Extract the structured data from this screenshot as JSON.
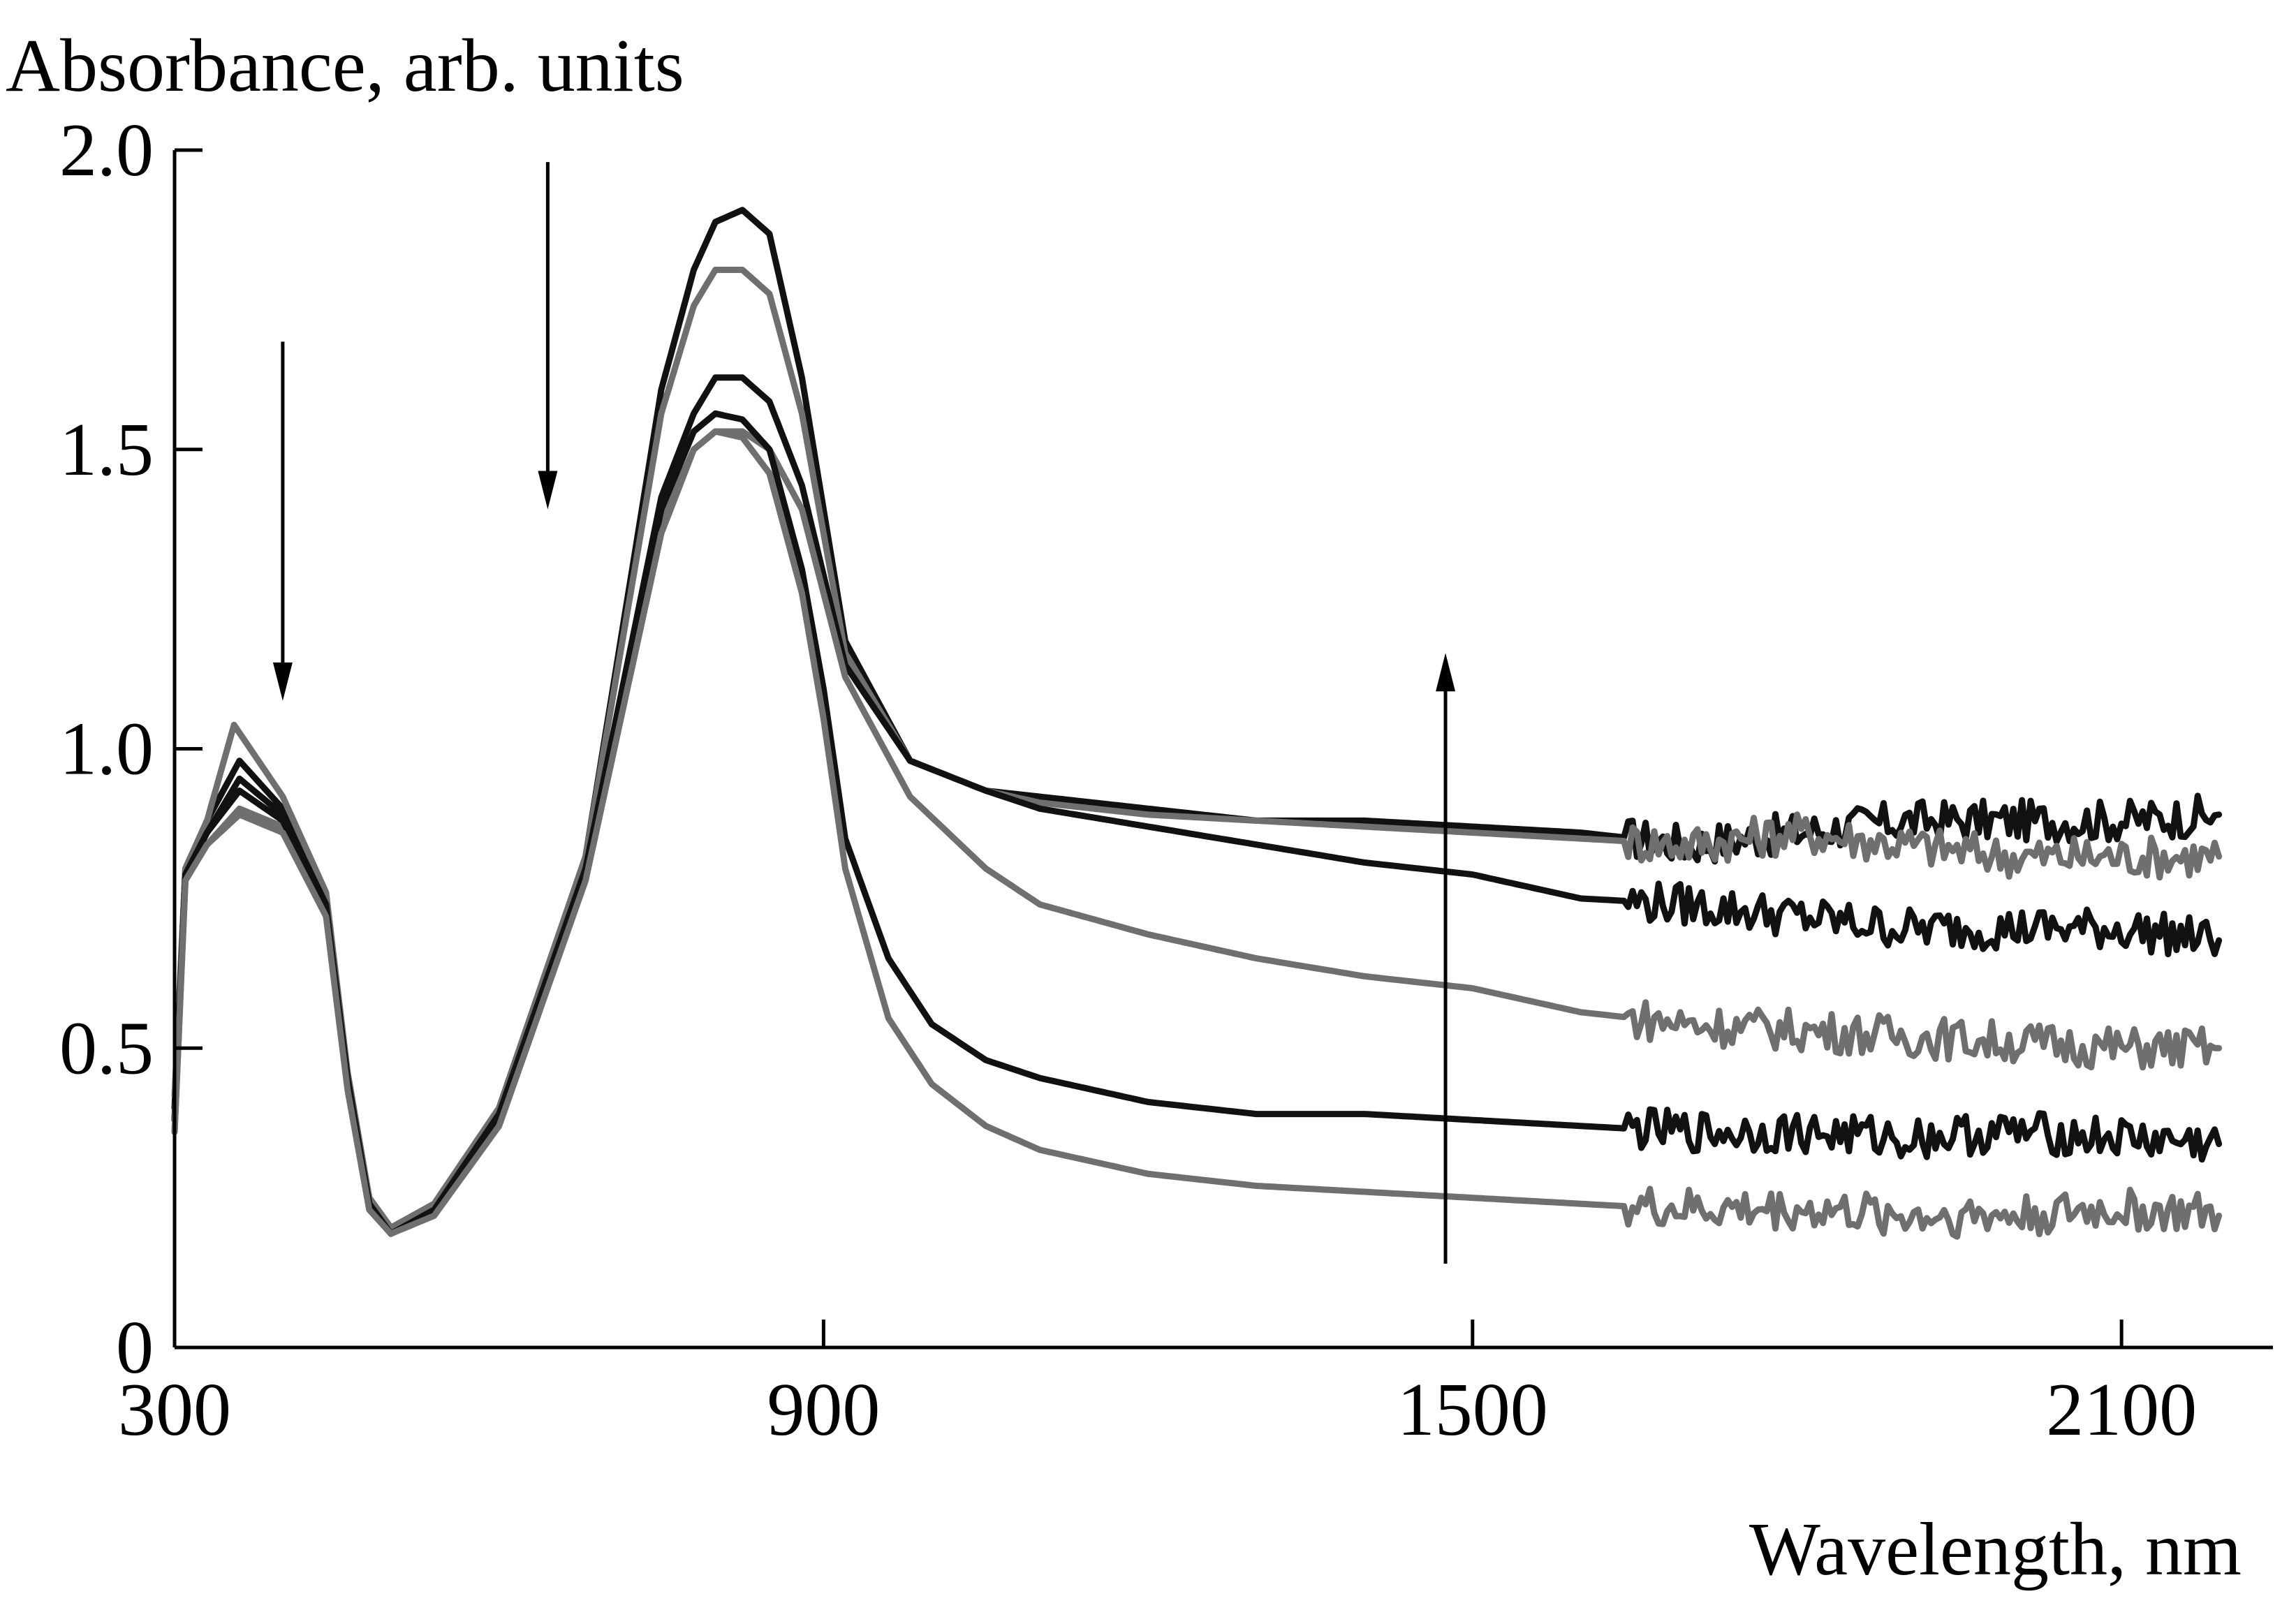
{
  "chart_data": {
    "type": "line",
    "ylabel": "Absorbance, arb. units",
    "xlabel": "Wavelength, nm",
    "xlim": [
      300,
      2240
    ],
    "ylim": [
      0,
      2.0
    ],
    "xticks": [
      300,
      900,
      1500,
      2100
    ],
    "xtick_labels": [
      "300",
      "900",
      "1500",
      "2100"
    ],
    "yticks": [
      0,
      0.5,
      1.0,
      1.5,
      2.0
    ],
    "ytick_labels": [
      "0",
      "0.5",
      "1.0",
      "1.5",
      "2.0"
    ],
    "grid": false,
    "colors": {
      "black": "#111111",
      "gray": "#6f6f6f"
    },
    "series": [
      {
        "color": "#111111",
        "x": [
          300,
          310,
          330,
          360,
          400,
          440,
          460,
          480,
          500,
          540,
          600,
          680,
          750,
          780,
          800,
          825,
          850,
          880,
          920,
          980,
          1050,
          1100,
          1200,
          1300,
          1400,
          1500,
          1600,
          1700,
          1800,
          1900,
          2000,
          2100,
          2190
        ],
        "y": [
          0.4,
          0.8,
          0.88,
          0.98,
          0.9,
          0.75,
          0.45,
          0.25,
          0.2,
          0.24,
          0.4,
          0.82,
          1.6,
          1.8,
          1.88,
          1.9,
          1.86,
          1.62,
          1.18,
          0.98,
          0.93,
          0.92,
          0.9,
          0.88,
          0.88,
          0.87,
          0.86,
          0.84,
          0.86,
          0.88,
          0.88,
          0.88,
          0.89
        ]
      },
      {
        "color": "#6f6f6f",
        "x": [
          300,
          310,
          330,
          355,
          400,
          440,
          460,
          480,
          500,
          540,
          600,
          680,
          750,
          780,
          800,
          825,
          850,
          880,
          920,
          980,
          1050,
          1100,
          1200,
          1300,
          1400,
          1500,
          1600,
          1700,
          1800,
          1900,
          2000,
          2100,
          2190
        ],
        "y": [
          0.42,
          0.8,
          0.88,
          1.04,
          0.92,
          0.76,
          0.46,
          0.25,
          0.2,
          0.24,
          0.4,
          0.82,
          1.56,
          1.74,
          1.8,
          1.8,
          1.76,
          1.56,
          1.16,
          0.98,
          0.93,
          0.91,
          0.89,
          0.88,
          0.87,
          0.86,
          0.85,
          0.84,
          0.86,
          0.84,
          0.82,
          0.82,
          0.82
        ]
      },
      {
        "color": "#111111",
        "x": [
          300,
          310,
          330,
          360,
          400,
          440,
          460,
          480,
          500,
          540,
          600,
          680,
          750,
          780,
          800,
          825,
          850,
          880,
          920,
          980,
          1050,
          1100,
          1200,
          1300,
          1400,
          1500,
          1600,
          1700,
          1800,
          1900,
          2000,
          2100,
          2190
        ],
        "y": [
          0.38,
          0.79,
          0.86,
          0.95,
          0.89,
          0.74,
          0.45,
          0.24,
          0.19,
          0.23,
          0.39,
          0.8,
          1.42,
          1.56,
          1.62,
          1.62,
          1.58,
          1.44,
          1.14,
          0.98,
          0.93,
          0.9,
          0.87,
          0.84,
          0.81,
          0.79,
          0.75,
          0.74,
          0.72,
          0.7,
          0.7,
          0.7,
          0.68
        ]
      },
      {
        "color": "#6f6f6f",
        "x": [
          300,
          310,
          330,
          360,
          400,
          440,
          460,
          480,
          500,
          540,
          600,
          680,
          750,
          780,
          800,
          825,
          850,
          880,
          920,
          980,
          1050,
          1100,
          1200,
          1300,
          1400,
          1500,
          1600,
          1700,
          1800,
          1900,
          2000,
          2100,
          2190
        ],
        "y": [
          0.36,
          0.78,
          0.84,
          0.9,
          0.87,
          0.73,
          0.44,
          0.24,
          0.19,
          0.23,
          0.38,
          0.8,
          1.38,
          1.5,
          1.53,
          1.53,
          1.5,
          1.4,
          1.12,
          0.92,
          0.8,
          0.74,
          0.69,
          0.65,
          0.62,
          0.6,
          0.56,
          0.54,
          0.53,
          0.52,
          0.51,
          0.5,
          0.5
        ]
      },
      {
        "color": "#111111",
        "x": [
          300,
          310,
          330,
          360,
          400,
          440,
          460,
          480,
          500,
          540,
          600,
          680,
          750,
          780,
          800,
          825,
          850,
          880,
          900,
          920,
          960,
          1000,
          1050,
          1100,
          1200,
          1300,
          1400,
          1500,
          1600,
          1700,
          1800,
          1900,
          2000,
          2100,
          2190
        ],
        "y": [
          0.38,
          0.79,
          0.86,
          0.93,
          0.88,
          0.73,
          0.44,
          0.24,
          0.19,
          0.23,
          0.38,
          0.8,
          1.4,
          1.53,
          1.56,
          1.55,
          1.5,
          1.3,
          1.1,
          0.85,
          0.65,
          0.54,
          0.48,
          0.45,
          0.41,
          0.39,
          0.39,
          0.38,
          0.37,
          0.36,
          0.36,
          0.35,
          0.36,
          0.35,
          0.34
        ]
      },
      {
        "color": "#6f6f6f",
        "x": [
          300,
          310,
          330,
          360,
          400,
          440,
          460,
          480,
          500,
          540,
          600,
          680,
          750,
          780,
          800,
          825,
          850,
          880,
          900,
          920,
          960,
          1000,
          1050,
          1100,
          1200,
          1300,
          1400,
          1500,
          1600,
          1700,
          1800,
          1900,
          2000,
          2100,
          2190
        ],
        "y": [
          0.36,
          0.78,
          0.84,
          0.89,
          0.86,
          0.72,
          0.43,
          0.23,
          0.19,
          0.22,
          0.37,
          0.78,
          1.36,
          1.5,
          1.53,
          1.52,
          1.46,
          1.26,
          1.05,
          0.8,
          0.55,
          0.44,
          0.37,
          0.33,
          0.29,
          0.27,
          0.26,
          0.25,
          0.24,
          0.23,
          0.23,
          0.22,
          0.22,
          0.23,
          0.22
        ]
      }
    ],
    "arrows": [
      {
        "x": 400,
        "y_from": 1.68,
        "y_to": 1.08
      },
      {
        "x": 645,
        "y_from": 1.98,
        "y_to": 1.4
      },
      {
        "x": 1475,
        "y_from": 0.14,
        "y_to": 1.16
      }
    ]
  }
}
